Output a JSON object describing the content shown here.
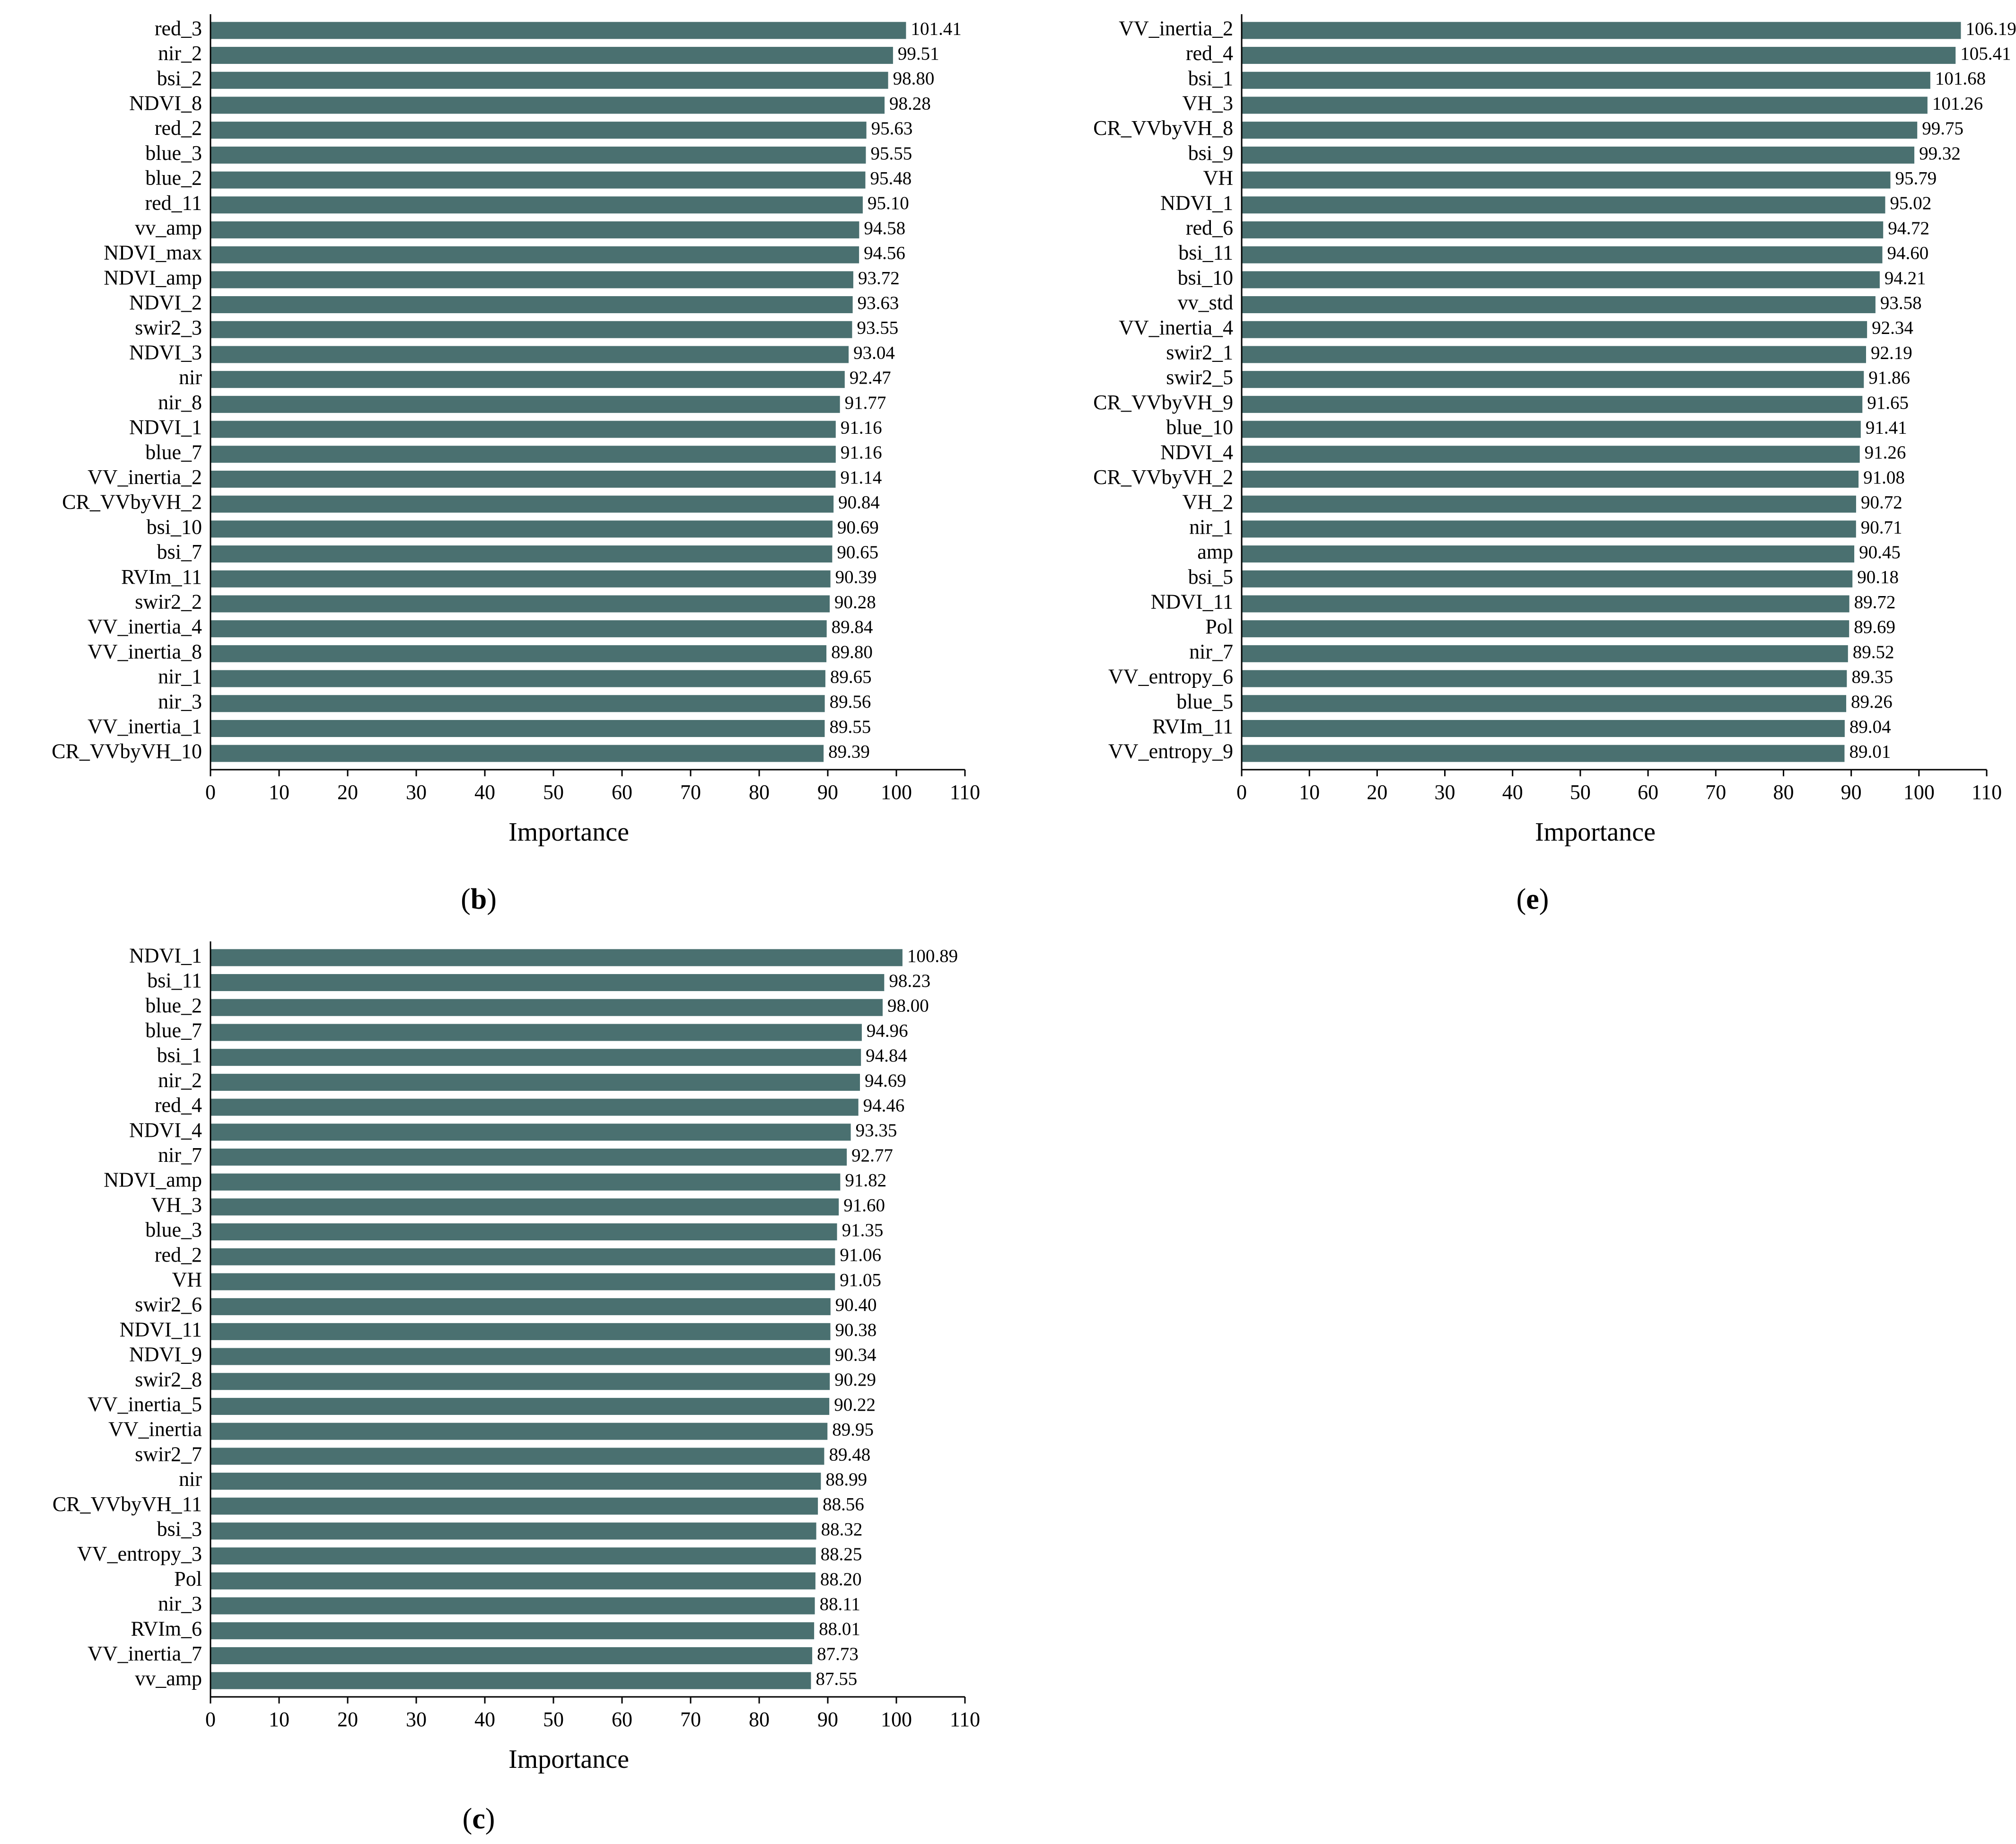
{
  "chart_data": [
    {
      "type": "bar",
      "orientation": "horizontal",
      "panel": "b",
      "xlabel": "Importance",
      "xlim": [
        0,
        110
      ],
      "xticks": [
        0,
        10,
        20,
        30,
        40,
        50,
        60,
        70,
        80,
        90,
        100,
        110
      ],
      "bar_color": "#4a7070",
      "categories": [
        "red_3",
        "nir_2",
        "bsi_2",
        "NDVI_8",
        "red_2",
        "blue_3",
        "blue_2",
        "red_11",
        "vv_amp",
        "NDVI_max",
        "NDVI_amp",
        "NDVI_2",
        "swir2_3",
        "NDVI_3",
        "nir",
        "nir_8",
        "NDVI_1",
        "blue_7",
        "VV_inertia_2",
        "CR_VVbyVH_2",
        "bsi_10",
        "bsi_7",
        "RVIm_11",
        "swir2_2",
        "VV_inertia_4",
        "VV_inertia_8",
        "nir_1",
        "nir_3",
        "VV_inertia_1",
        "CR_VVbyVH_10"
      ],
      "values": [
        101.41,
        99.51,
        98.8,
        98.28,
        95.63,
        95.55,
        95.48,
        95.1,
        94.58,
        94.56,
        93.72,
        93.63,
        93.55,
        93.04,
        92.47,
        91.77,
        91.16,
        91.16,
        91.14,
        90.84,
        90.69,
        90.65,
        90.39,
        90.28,
        89.84,
        89.8,
        89.65,
        89.56,
        89.55,
        89.39
      ],
      "value_labels": [
        "101.41",
        "99.51",
        "98.80",
        "98.28",
        "95.63",
        "95.55",
        "95.48",
        "95.10",
        "94.58",
        "94.56",
        "93.72",
        "93.63",
        "93.55",
        "93.04",
        "92.47",
        "91.77",
        "91.16",
        "91.16",
        "91.14",
        "90.84",
        "90.69",
        "90.65",
        "90.39",
        "90.28",
        "89.84",
        "89.80",
        "89.65",
        "89.56",
        "89.55",
        "89.39"
      ]
    },
    {
      "type": "bar",
      "orientation": "horizontal",
      "panel": "e",
      "xlabel": "Importance",
      "xlim": [
        0,
        110
      ],
      "xticks": [
        0,
        10,
        20,
        30,
        40,
        50,
        60,
        70,
        80,
        90,
        100,
        110
      ],
      "bar_color": "#4a7070",
      "categories": [
        "VV_inertia_2",
        "red_4",
        "bsi_1",
        "VH_3",
        "CR_VVbyVH_8",
        "bsi_9",
        "VH",
        "NDVI_1",
        "red_6",
        "bsi_11",
        "bsi_10",
        "vv_std",
        "VV_inertia_4",
        "swir2_1",
        "swir2_5",
        "CR_VVbyVH_9",
        "blue_10",
        "NDVI_4",
        "CR_VVbyVH_2",
        "VH_2",
        "nir_1",
        "amp",
        "bsi_5",
        "NDVI_11",
        "Pol",
        "nir_7",
        "VV_entropy_6",
        "blue_5",
        "RVIm_11",
        "VV_entropy_9"
      ],
      "values": [
        106.19,
        105.41,
        101.68,
        101.26,
        99.75,
        99.32,
        95.79,
        95.02,
        94.72,
        94.6,
        94.21,
        93.58,
        92.34,
        92.19,
        91.86,
        91.65,
        91.41,
        91.26,
        91.08,
        90.72,
        90.71,
        90.45,
        90.18,
        89.72,
        89.69,
        89.52,
        89.35,
        89.26,
        89.04,
        89.01
      ],
      "value_labels": [
        "106.19",
        "105.41",
        "101.68",
        "101.26",
        "99.75",
        "99.32",
        "95.79",
        "95.02",
        "94.72",
        "94.60",
        "94.21",
        "93.58",
        "92.34",
        "92.19",
        "91.86",
        "91.65",
        "91.41",
        "91.26",
        "91.08",
        "90.72",
        "90.71",
        "90.45",
        "90.18",
        "89.72",
        "89.69",
        "89.52",
        "89.35",
        "89.26",
        "89.04",
        "89.01"
      ]
    },
    {
      "type": "bar",
      "orientation": "horizontal",
      "panel": "c",
      "xlabel": "Importance",
      "xlim": [
        0,
        110
      ],
      "xticks": [
        0,
        10,
        20,
        30,
        40,
        50,
        60,
        70,
        80,
        90,
        100,
        110
      ],
      "bar_color": "#4a7070",
      "categories": [
        "NDVI_1",
        "bsi_11",
        "blue_2",
        "blue_7",
        "bsi_1",
        "nir_2",
        "red_4",
        "NDVI_4",
        "nir_7",
        "NDVI_amp",
        "VH_3",
        "blue_3",
        "red_2",
        "VH",
        "swir2_6",
        "NDVI_11",
        "NDVI_9",
        "swir2_8",
        "VV_inertia_5",
        "VV_inertia",
        "swir2_7",
        "nir",
        "CR_VVbyVH_11",
        "bsi_3",
        "VV_entropy_3",
        "Pol",
        "nir_3",
        "RVIm_6",
        "VV_inertia_7",
        "vv_amp"
      ],
      "values": [
        100.89,
        98.23,
        98.0,
        94.96,
        94.84,
        94.69,
        94.46,
        93.35,
        92.77,
        91.82,
        91.6,
        91.35,
        91.06,
        91.05,
        90.4,
        90.38,
        90.34,
        90.29,
        90.22,
        89.95,
        89.48,
        88.99,
        88.56,
        88.32,
        88.25,
        88.2,
        88.11,
        88.01,
        87.73,
        87.55
      ],
      "value_labels": [
        "100.89",
        "98.23",
        "98.00",
        "94.96",
        "94.84",
        "94.69",
        "94.46",
        "93.35",
        "92.77",
        "91.82",
        "91.60",
        "91.35",
        "91.06",
        "91.05",
        "90.40",
        "90.38",
        "90.34",
        "90.29",
        "90.22",
        "89.95",
        "89.48",
        "88.99",
        "88.56",
        "88.32",
        "88.25",
        "88.20",
        "88.11",
        "88.01",
        "87.73",
        "87.55"
      ]
    }
  ],
  "panel_labels": {
    "b": {
      "open": "(",
      "letter": "b",
      "close": ")"
    },
    "e": {
      "open": "(",
      "letter": "e",
      "close": ")"
    },
    "c": {
      "open": "(",
      "letter": "c",
      "close": ")"
    }
  }
}
